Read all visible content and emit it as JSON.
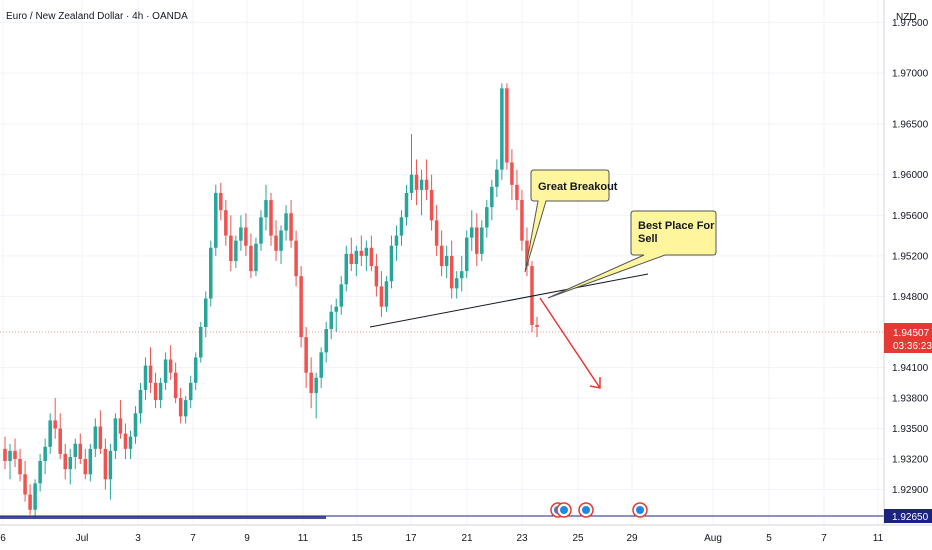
{
  "header": {
    "title": "Euro / New Zealand Dollar · 4h · OANDA"
  },
  "colors": {
    "up": "#26a69a",
    "down": "#ef5350",
    "arrow": "#e53935",
    "callout_fill": "#fff59d",
    "callout_stroke": "#555555",
    "price_badge": "#e53935",
    "level_badge": "#1a237e",
    "grid": "#f0f3fa"
  },
  "chart_data": {
    "type": "candlestick",
    "symbol": "EURNZD",
    "timeframe": "4h",
    "source": "OANDA",
    "currency": "NZD",
    "y_ticks": [
      "1.97500",
      "1.97000",
      "1.96500",
      "1.96000",
      "1.95600",
      "1.95200",
      "1.94800",
      "1.94100",
      "1.93800",
      "1.93500",
      "1.93200",
      "1.92900"
    ],
    "y_tick_values": [
      1.975,
      1.97,
      1.965,
      1.96,
      1.956,
      1.952,
      1.948,
      1.941,
      1.938,
      1.935,
      1.932,
      1.929
    ],
    "x_ticks": [
      "6",
      "Jul",
      "3",
      "7",
      "9",
      "11",
      "15",
      "17",
      "21",
      "23",
      "25",
      "29",
      "Aug",
      "5",
      "7",
      "11"
    ],
    "ylim": [
      1.9255,
      1.9772
    ],
    "current_price": {
      "value": "1.94507",
      "countdown": "03:36:23"
    },
    "level": {
      "value": "1.92650"
    },
    "candles": [
      [
        1.933,
        1.9342,
        1.931,
        1.9318
      ],
      [
        1.9318,
        1.9335,
        1.93,
        1.9328
      ],
      [
        1.9328,
        1.934,
        1.9312,
        1.932
      ],
      [
        1.932,
        1.933,
        1.9298,
        1.9305
      ],
      [
        1.9305,
        1.9318,
        1.9278,
        1.9285
      ],
      [
        1.9285,
        1.9295,
        1.9265,
        1.927
      ],
      [
        1.927,
        1.93,
        1.9262,
        1.9296
      ],
      [
        1.9296,
        1.9325,
        1.9288,
        1.9318
      ],
      [
        1.9318,
        1.934,
        1.9305,
        1.9332
      ],
      [
        1.9332,
        1.9365,
        1.9325,
        1.9358
      ],
      [
        1.9358,
        1.938,
        1.934,
        1.935
      ],
      [
        1.935,
        1.9365,
        1.932,
        1.9325
      ],
      [
        1.9325,
        1.9335,
        1.93,
        1.931
      ],
      [
        1.931,
        1.933,
        1.9295,
        1.9322
      ],
      [
        1.9322,
        1.934,
        1.931,
        1.9335
      ],
      [
        1.9335,
        1.9345,
        1.9315,
        1.932
      ],
      [
        1.932,
        1.933,
        1.93,
        1.9305
      ],
      [
        1.9305,
        1.9335,
        1.9298,
        1.933
      ],
      [
        1.933,
        1.936,
        1.9322,
        1.9352
      ],
      [
        1.9352,
        1.9368,
        1.9325,
        1.933
      ],
      [
        1.933,
        1.934,
        1.929,
        1.93
      ],
      [
        1.93,
        1.9335,
        1.928,
        1.9328
      ],
      [
        1.9328,
        1.9365,
        1.932,
        1.936
      ],
      [
        1.936,
        1.9378,
        1.934,
        1.9345
      ],
      [
        1.9345,
        1.9355,
        1.932,
        1.933
      ],
      [
        1.933,
        1.9348,
        1.932,
        1.9342
      ],
      [
        1.9342,
        1.9372,
        1.9335,
        1.9365
      ],
      [
        1.9365,
        1.9395,
        1.9355,
        1.9388
      ],
      [
        1.9388,
        1.942,
        1.9378,
        1.9412
      ],
      [
        1.9412,
        1.943,
        1.9385,
        1.9395
      ],
      [
        1.9395,
        1.9405,
        1.937,
        1.9378
      ],
      [
        1.9378,
        1.94,
        1.937,
        1.9395
      ],
      [
        1.9395,
        1.9425,
        1.9388,
        1.9418
      ],
      [
        1.9418,
        1.9432,
        1.9398,
        1.9405
      ],
      [
        1.9405,
        1.9415,
        1.9375,
        1.938
      ],
      [
        1.938,
        1.939,
        1.9355,
        1.9362
      ],
      [
        1.9362,
        1.9382,
        1.9355,
        1.9378
      ],
      [
        1.9378,
        1.9402,
        1.937,
        1.9395
      ],
      [
        1.9395,
        1.9425,
        1.9388,
        1.942
      ],
      [
        1.942,
        1.9455,
        1.9415,
        1.945
      ],
      [
        1.945,
        1.9485,
        1.944,
        1.9478
      ],
      [
        1.9478,
        1.9535,
        1.947,
        1.9528
      ],
      [
        1.9528,
        1.959,
        1.952,
        1.9582
      ],
      [
        1.9582,
        1.9592,
        1.9555,
        1.9565
      ],
      [
        1.9565,
        1.9575,
        1.953,
        1.954
      ],
      [
        1.954,
        1.956,
        1.9505,
        1.9515
      ],
      [
        1.9515,
        1.954,
        1.9508,
        1.9535
      ],
      [
        1.9535,
        1.956,
        1.9525,
        1.9548
      ],
      [
        1.9548,
        1.9562,
        1.952,
        1.953
      ],
      [
        1.953,
        1.9542,
        1.9498,
        1.9505
      ],
      [
        1.9505,
        1.9538,
        1.95,
        1.9532
      ],
      [
        1.9532,
        1.9565,
        1.9525,
        1.9558
      ],
      [
        1.9558,
        1.959,
        1.9545,
        1.9575
      ],
      [
        1.9575,
        1.9582,
        1.953,
        1.954
      ],
      [
        1.954,
        1.9555,
        1.9515,
        1.9525
      ],
      [
        1.9525,
        1.955,
        1.9512,
        1.9545
      ],
      [
        1.9545,
        1.957,
        1.9535,
        1.9562
      ],
      [
        1.9562,
        1.9575,
        1.9528,
        1.9535
      ],
      [
        1.9535,
        1.9545,
        1.949,
        1.95
      ],
      [
        1.95,
        1.951,
        1.943,
        1.944
      ],
      [
        1.944,
        1.945,
        1.939,
        1.9405
      ],
      [
        1.9405,
        1.942,
        1.937,
        1.9385
      ],
      [
        1.9385,
        1.9405,
        1.936,
        1.94
      ],
      [
        1.94,
        1.943,
        1.939,
        1.9425
      ],
      [
        1.9425,
        1.9455,
        1.9415,
        1.9448
      ],
      [
        1.9448,
        1.9472,
        1.9438,
        1.9465
      ],
      [
        1.9465,
        1.9478,
        1.9445,
        1.947
      ],
      [
        1.947,
        1.95,
        1.9462,
        1.9492
      ],
      [
        1.9492,
        1.953,
        1.9485,
        1.9522
      ],
      [
        1.9522,
        1.9538,
        1.9505,
        1.9512
      ],
      [
        1.9512,
        1.953,
        1.95,
        1.9525
      ],
      [
        1.9525,
        1.954,
        1.951,
        1.952
      ],
      [
        1.952,
        1.9535,
        1.9505,
        1.9528
      ],
      [
        1.9528,
        1.954,
        1.9505,
        1.951
      ],
      [
        1.951,
        1.9522,
        1.948,
        1.949
      ],
      [
        1.949,
        1.9505,
        1.946,
        1.947
      ],
      [
        1.947,
        1.95,
        1.9465,
        1.9495
      ],
      [
        1.9495,
        1.954,
        1.9488,
        1.953
      ],
      [
        1.953,
        1.955,
        1.9515,
        1.954
      ],
      [
        1.954,
        1.9565,
        1.953,
        1.9558
      ],
      [
        1.9558,
        1.959,
        1.955,
        1.9582
      ],
      [
        1.9582,
        1.964,
        1.9575,
        1.96
      ],
      [
        1.96,
        1.9615,
        1.957,
        1.9585
      ],
      [
        1.9585,
        1.9605,
        1.956,
        1.9595
      ],
      [
        1.9595,
        1.9615,
        1.9575,
        1.9585
      ],
      [
        1.9585,
        1.96,
        1.9545,
        1.9555
      ],
      [
        1.9555,
        1.957,
        1.952,
        1.953
      ],
      [
        1.953,
        1.9545,
        1.95,
        1.951
      ],
      [
        1.951,
        1.953,
        1.9498,
        1.952
      ],
      [
        1.952,
        1.9535,
        1.9478,
        1.9488
      ],
      [
        1.9488,
        1.9505,
        1.9478,
        1.9498
      ],
      [
        1.9498,
        1.952,
        1.9485,
        1.9505
      ],
      [
        1.9505,
        1.9545,
        1.9498,
        1.9538
      ],
      [
        1.9538,
        1.9565,
        1.9525,
        1.9548
      ],
      [
        1.9548,
        1.9562,
        1.951,
        1.9522
      ],
      [
        1.9522,
        1.9555,
        1.9515,
        1.9548
      ],
      [
        1.9548,
        1.9575,
        1.9538,
        1.9568
      ],
      [
        1.9568,
        1.9595,
        1.9555,
        1.9588
      ],
      [
        1.9588,
        1.9615,
        1.9578,
        1.9605
      ],
      [
        1.9605,
        1.969,
        1.9595,
        1.9685
      ],
      [
        1.9685,
        1.969,
        1.9605,
        1.9612
      ],
      [
        1.9612,
        1.9625,
        1.9575,
        1.959
      ],
      [
        1.959,
        1.9605,
        1.9565,
        1.9575
      ],
      [
        1.9575,
        1.9585,
        1.9525,
        1.9535
      ],
      [
        1.9535,
        1.9548,
        1.95,
        1.951
      ],
      [
        1.951,
        1.9515,
        1.9445,
        1.9452
      ],
      [
        1.9452,
        1.946,
        1.944,
        1.945
      ]
    ]
  },
  "annotations": {
    "callout1": "Great Breakout",
    "callout2_line1": "Best Place For",
    "callout2_line2": "Sell"
  }
}
